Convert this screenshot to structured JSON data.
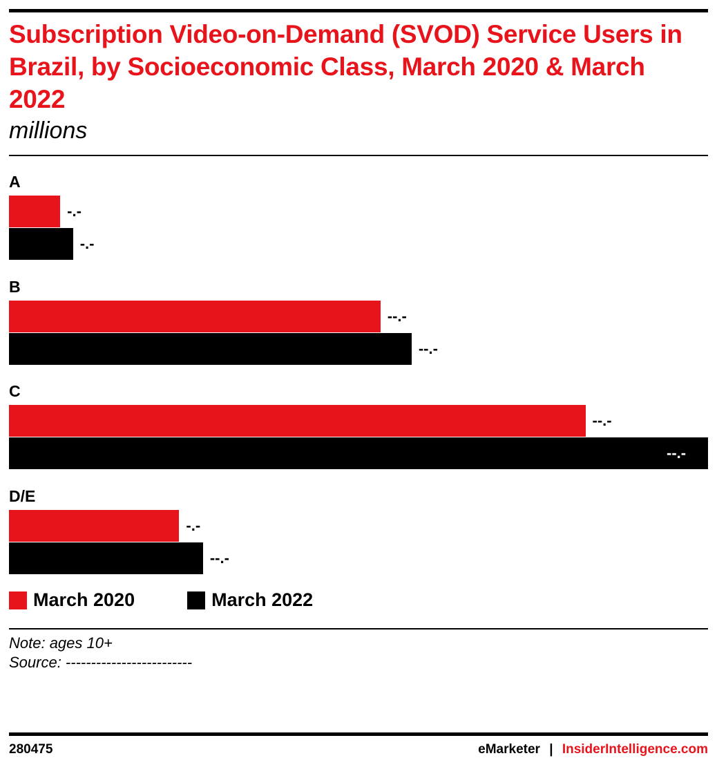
{
  "chart_data": {
    "type": "bar",
    "orientation": "horizontal",
    "title": "Subscription Video-on-Demand (SVOD) Service Users in Brazil, by Socioeconomic Class, March 2020 & March 2022",
    "subtitle": "millions",
    "categories": [
      "A",
      "B",
      "C",
      "D/E"
    ],
    "series": [
      {
        "name": "March 2020",
        "color": "#e8141c",
        "values": [
          2.8,
          20.3,
          31.5,
          9.3
        ],
        "labels": [
          "-.-",
          "--.-",
          "--.-",
          "-.-"
        ]
      },
      {
        "name": "March 2022",
        "color": "#000000",
        "values": [
          3.5,
          22.0,
          38.2,
          10.6
        ],
        "labels": [
          "-.-",
          "--.-",
          "--.-",
          "--.-"
        ]
      }
    ],
    "xlim": [
      0,
      38.2
    ],
    "grid": false,
    "legend_position": "bottom-left"
  },
  "note": "Note: ages 10+",
  "source": "Source: -------------------------",
  "footer": {
    "chart_id": "280475",
    "brand": "eMarketer",
    "separator": "|",
    "site": "InsiderIntelligence.com"
  }
}
